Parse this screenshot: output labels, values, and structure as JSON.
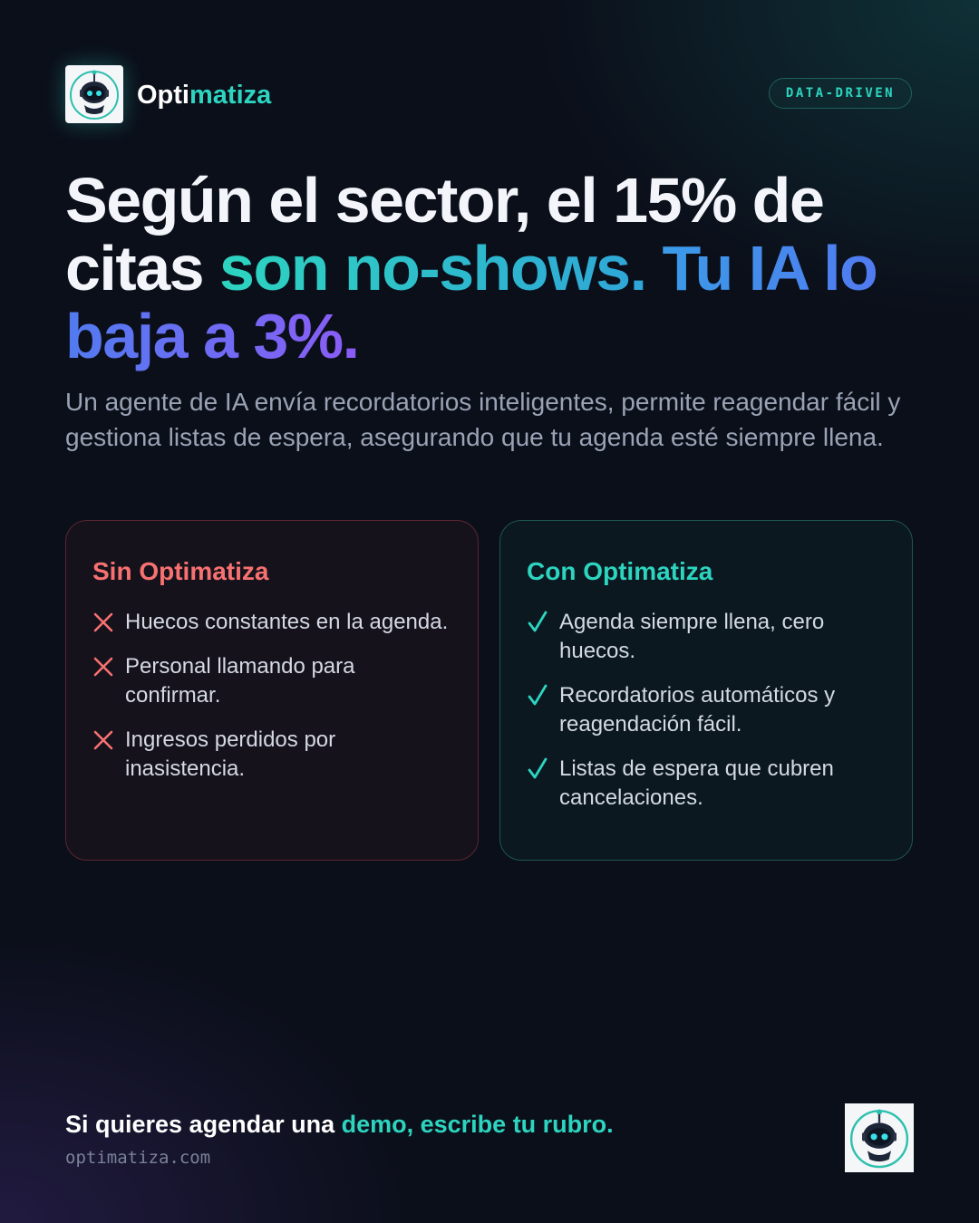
{
  "brand": {
    "prefix": "Opti",
    "highlight": "matiza"
  },
  "badge": "DATA-DRIVEN",
  "headline": {
    "plain": "Según el sector, el 15% de citas",
    "accent": "son no-shows.",
    "emphasis": "Tu IA lo baja a 3%."
  },
  "subtitle": "Un agente de IA envía recordatorios inteligentes, permite reagendar fácil y gestiona listas de espera, asegurando que tu agenda esté siempre llena.",
  "cards": [
    {
      "title": "Sin Optimatiza",
      "items": [
        "Huecos constantes en la agenda.",
        "Personal llamando para confirmar.",
        "Ingresos perdidos por inasistencia."
      ]
    },
    {
      "title": "Con Optimatiza",
      "items": [
        "Agenda siempre llena, cero huecos.",
        "Recordatorios automáticos y reagendación fácil.",
        "Listas de espera que cubren cancelaciones."
      ]
    }
  ],
  "footer": {
    "cta": "Si quieres agendar una",
    "cta_highlight": "demo, escribe tu rubro.",
    "url": "optimatiza.com"
  }
}
